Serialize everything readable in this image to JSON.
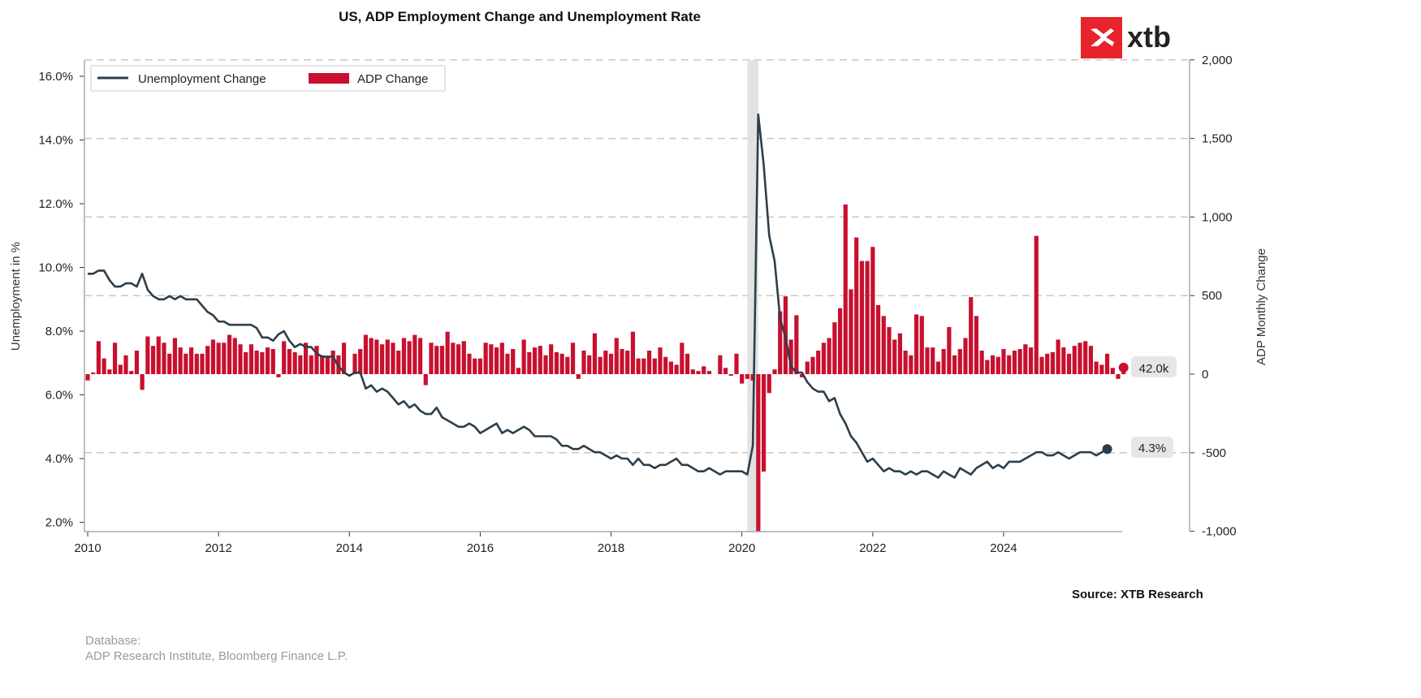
{
  "chart_data": {
    "type": "bar+line",
    "title": "US, ADP Employment Change and Unemployment Rate",
    "left_axis": {
      "label": "Unemployment in %",
      "range": [
        1.7,
        16.5
      ],
      "ticks": [
        "2.0%",
        "4.0%",
        "6.0%",
        "8.0%",
        "10.0%",
        "12.0%",
        "14.0%",
        "16.0%"
      ],
      "tick_values": [
        2,
        4,
        6,
        8,
        10,
        12,
        14,
        16
      ]
    },
    "right_axis": {
      "label": "ADP Monthly Change",
      "range": [
        -1000,
        2000
      ],
      "ticks": [
        "-1,000",
        "-500",
        "0",
        "500",
        "1,000",
        "1,500",
        "2,000"
      ],
      "tick_values": [
        -1000,
        -500,
        0,
        500,
        1000,
        1500,
        2000
      ]
    },
    "x_axis": {
      "ticks": [
        "2010",
        "2012",
        "2014",
        "2016",
        "2018",
        "2020",
        "2022",
        "2024"
      ],
      "tick_values": [
        2010,
        2012,
        2014,
        2016,
        2018,
        2020,
        2022,
        2024
      ],
      "range": [
        2009.95,
        2025.85
      ]
    },
    "grid": "horizontal dashed at right-axis ticks",
    "legend": {
      "placement": "top-left",
      "entries": [
        "Unemployment Change",
        "ADP Change"
      ]
    },
    "recession_shading": [
      "2020-02",
      "2020-04"
    ],
    "series": [
      {
        "name": "Unemployment Change",
        "kind": "line",
        "axis": "left",
        "start": "2010-01",
        "color": "#2d3e4a",
        "values": [
          9.8,
          9.8,
          9.9,
          9.9,
          9.6,
          9.4,
          9.4,
          9.5,
          9.5,
          9.4,
          9.8,
          9.3,
          9.1,
          9.0,
          9.0,
          9.1,
          9.0,
          9.1,
          9.0,
          9.0,
          9.0,
          8.8,
          8.6,
          8.5,
          8.3,
          8.3,
          8.2,
          8.2,
          8.2,
          8.2,
          8.2,
          8.1,
          7.8,
          7.8,
          7.7,
          7.9,
          8.0,
          7.7,
          7.5,
          7.6,
          7.5,
          7.5,
          7.3,
          7.2,
          7.2,
          7.2,
          6.9,
          6.7,
          6.6,
          6.7,
          6.7,
          6.2,
          6.3,
          6.1,
          6.2,
          6.1,
          5.9,
          5.7,
          5.8,
          5.6,
          5.7,
          5.5,
          5.4,
          5.4,
          5.6,
          5.3,
          5.2,
          5.1,
          5.0,
          5.0,
          5.1,
          5.0,
          4.8,
          4.9,
          5.0,
          5.1,
          4.8,
          4.9,
          4.8,
          4.9,
          5.0,
          4.9,
          4.7,
          4.7,
          4.7,
          4.7,
          4.6,
          4.4,
          4.4,
          4.3,
          4.3,
          4.4,
          4.3,
          4.2,
          4.2,
          4.1,
          4.0,
          4.1,
          4.0,
          4.0,
          3.8,
          4.0,
          3.8,
          3.8,
          3.7,
          3.8,
          3.8,
          3.9,
          4.0,
          3.8,
          3.8,
          3.7,
          3.6,
          3.6,
          3.7,
          3.6,
          3.5,
          3.6,
          3.6,
          3.6,
          3.6,
          3.5,
          4.4,
          14.8,
          13.2,
          11.0,
          10.2,
          8.4,
          7.8,
          6.9,
          6.7,
          6.7,
          6.4,
          6.2,
          6.1,
          6.1,
          5.8,
          5.9,
          5.4,
          5.1,
          4.7,
          4.5,
          4.2,
          3.9,
          4.0,
          3.8,
          3.6,
          3.7,
          3.6,
          3.6,
          3.5,
          3.6,
          3.5,
          3.6,
          3.6,
          3.5,
          3.4,
          3.6,
          3.5,
          3.4,
          3.7,
          3.6,
          3.5,
          3.7,
          3.8,
          3.9,
          3.7,
          3.8,
          3.7,
          3.9,
          3.9,
          3.9,
          4.0,
          4.1,
          4.2,
          4.2,
          4.1,
          4.1,
          4.2,
          4.1,
          4.0,
          4.1,
          4.2,
          4.2,
          4.2,
          4.1,
          4.2,
          4.3
        ],
        "last_label": "4.3%"
      },
      {
        "name": "ADP Change",
        "kind": "bar",
        "axis": "right",
        "unit": "thousands",
        "start": "2010-01",
        "color": "#c8102e",
        "values": [
          -40,
          10,
          210,
          100,
          30,
          200,
          60,
          120,
          20,
          150,
          -100,
          240,
          180,
          240,
          200,
          130,
          230,
          170,
          130,
          170,
          130,
          130,
          180,
          220,
          200,
          200,
          250,
          230,
          190,
          140,
          190,
          150,
          140,
          170,
          160,
          -20,
          210,
          160,
          140,
          120,
          200,
          120,
          180,
          120,
          110,
          150,
          120,
          200,
          -10,
          130,
          160,
          250,
          230,
          220,
          190,
          220,
          200,
          150,
          230,
          210,
          250,
          230,
          -70,
          200,
          180,
          180,
          270,
          200,
          190,
          210,
          130,
          100,
          100,
          200,
          190,
          170,
          200,
          130,
          160,
          40,
          220,
          140,
          170,
          180,
          120,
          190,
          140,
          130,
          110,
          200,
          -30,
          150,
          120,
          260,
          110,
          150,
          130,
          230,
          160,
          150,
          270,
          100,
          100,
          150,
          100,
          170,
          110,
          80,
          60,
          200,
          130,
          30,
          20,
          50,
          20,
          0,
          120,
          40,
          -10,
          130,
          -60,
          -30,
          -40,
          -1000,
          -620,
          -120,
          30,
          400,
          495,
          220,
          375,
          -20,
          80,
          110,
          150,
          200,
          230,
          330,
          420,
          1080,
          540,
          870,
          720,
          720,
          810,
          440,
          370,
          300,
          220,
          260,
          150,
          120,
          380,
          370,
          170,
          170,
          80,
          160,
          300,
          120,
          160,
          230,
          490,
          370,
          150,
          90,
          120,
          110,
          160,
          120,
          150,
          160,
          190,
          170,
          880,
          110,
          130,
          140,
          220,
          170,
          130,
          180,
          200,
          210,
          180,
          80,
          60,
          130,
          40,
          -30,
          42
        ],
        "last_label": "42.0k"
      }
    ]
  },
  "logo": {
    "text": "xtb",
    "color": "#e8232b"
  },
  "footer": {
    "database_label": "Database:",
    "database_sources": "ADP Research Institute, Bloomberg Finance L.P.",
    "source": "Source: XTB Research"
  }
}
